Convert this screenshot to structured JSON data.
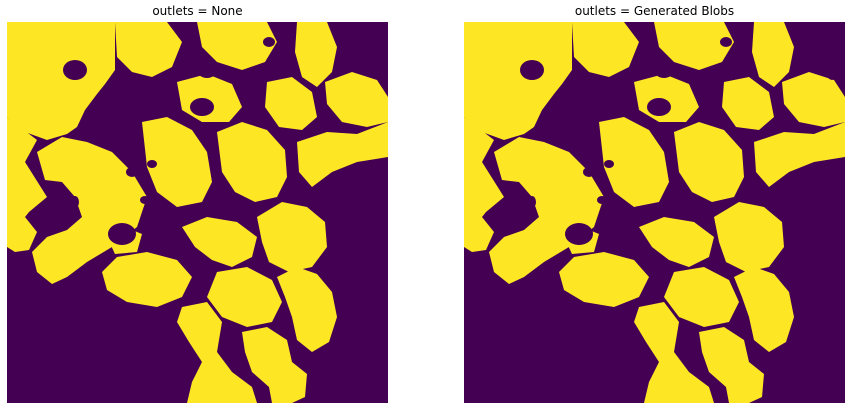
{
  "figure": {
    "panels": [
      {
        "title": "outlets = None"
      },
      {
        "title": "outlets = Generated Blobs"
      }
    ]
  },
  "chart_data": [
    {
      "type": "heatmap",
      "title": "outlets = None",
      "xlabel": "",
      "ylabel": "",
      "axes_visible": false,
      "colormap": "viridis",
      "values": "binary",
      "colors": {
        "0": "#440154",
        "1": "#fde725"
      }
    },
    {
      "type": "heatmap",
      "title": "outlets = Generated Blobs",
      "xlabel": "",
      "ylabel": "",
      "axes_visible": false,
      "colormap": "viridis",
      "values": "binary",
      "colors": {
        "0": "#440154",
        "1": "#fde725"
      }
    }
  ]
}
